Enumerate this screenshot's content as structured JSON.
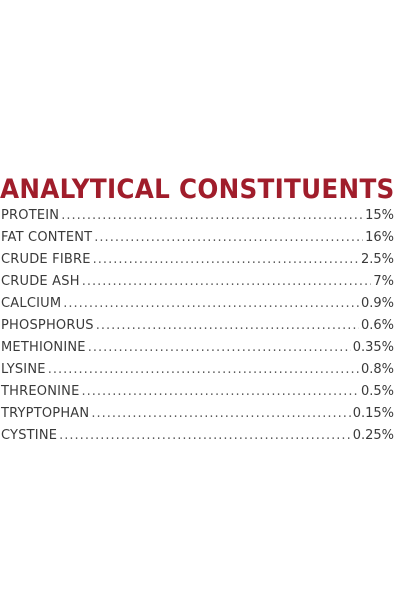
{
  "title": "ANALYTICAL CONSTITUENTS",
  "colors": {
    "title": "#a01d2b",
    "text": "#3a3a3a"
  },
  "constituents": [
    {
      "label": "PROTEIN",
      "value": "15%"
    },
    {
      "label": "FAT CONTENT",
      "value": "16%"
    },
    {
      "label": "CRUDE FIBRE",
      "value": "2.5%"
    },
    {
      "label": "CRUDE ASH",
      "value": "7%"
    },
    {
      "label": "CALCIUM",
      "value": "0.9%"
    },
    {
      "label": "PHOSPHORUS",
      "value": "0.6%"
    },
    {
      "label": "METHIONINE",
      "value": "0.35%"
    },
    {
      "label": "LYSINE",
      "value": "0.8%"
    },
    {
      "label": "THREONINE",
      "value": "0.5%"
    },
    {
      "label": "TRYPTOPHAN",
      "value": "0.15%"
    },
    {
      "label": "CYSTINE",
      "value": "0.25%"
    }
  ]
}
